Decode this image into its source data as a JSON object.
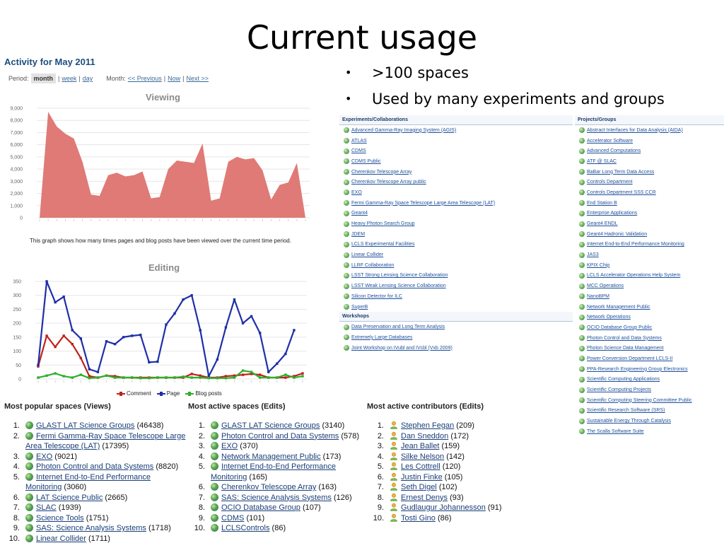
{
  "slide": {
    "title": "Current usage",
    "bullets": [
      ">100 spaces",
      "Used by many experiments and groups"
    ]
  },
  "activity": {
    "title": "Activity for May 2011",
    "period_label": "Period:",
    "period_options": [
      "month",
      "week",
      "day"
    ],
    "period_selected": "month",
    "month_label": "Month:",
    "month_links": [
      "<< Previous",
      "Now",
      "Next >>"
    ],
    "separator": "|"
  },
  "viewing_chart": {
    "title": "Viewing",
    "caption": "This graph shows how many times pages and blog posts have been viewed over the current time period."
  },
  "editing_chart": {
    "title": "Editing",
    "legend": [
      "Comment",
      "Page",
      "Blog posts"
    ]
  },
  "chart_data": [
    {
      "type": "area",
      "title": "Viewing",
      "xlabel": "",
      "ylabel": "",
      "ylim": [
        0,
        9000
      ],
      "yticks": [
        "0",
        "1,000",
        "2,000",
        "3,000",
        "4,000",
        "5,000",
        "6,000",
        "7,000",
        "8,000",
        "9,000"
      ],
      "color": "#e07a76",
      "series": [
        {
          "name": "Views",
          "values": [
            0,
            8700,
            7500,
            6900,
            6500,
            4600,
            1900,
            1800,
            3500,
            3700,
            3400,
            3500,
            3800,
            1600,
            1700,
            4000,
            4700,
            4600,
            4500,
            6100,
            1400,
            1600,
            4600,
            5000,
            4800,
            4900,
            3900,
            1500,
            2700,
            2900,
            4500,
            0
          ]
        }
      ]
    },
    {
      "type": "line",
      "title": "Editing",
      "xlabel": "",
      "ylabel": "",
      "ylim": [
        0,
        350
      ],
      "yticks": [
        "0",
        "50",
        "100",
        "150",
        "200",
        "250",
        "300",
        "350"
      ],
      "series": [
        {
          "name": "Comment",
          "color": "#c0201b",
          "values": [
            45,
            155,
            115,
            155,
            125,
            75,
            10,
            5,
            12,
            10,
            5,
            5,
            5,
            5,
            5,
            5,
            5,
            5,
            18,
            12,
            5,
            5,
            10,
            12,
            15,
            18,
            15,
            5,
            5,
            5,
            10,
            20
          ]
        },
        {
          "name": "Page",
          "color": "#1f2fa8",
          "values": [
            50,
            350,
            275,
            295,
            175,
            145,
            35,
            25,
            135,
            125,
            150,
            155,
            158,
            60,
            62,
            195,
            235,
            285,
            300,
            175,
            10,
            70,
            185,
            285,
            200,
            225,
            165,
            25,
            55,
            90,
            175,
            null
          ]
        },
        {
          "name": "Blog posts",
          "color": "#2fae2b",
          "values": [
            5,
            12,
            20,
            10,
            5,
            15,
            3,
            5,
            12,
            5,
            5,
            5,
            3,
            3,
            5,
            5,
            5,
            8,
            5,
            5,
            3,
            3,
            3,
            5,
            30,
            25,
            5,
            5,
            5,
            15,
            5,
            10
          ]
        }
      ]
    }
  ],
  "popular_views": {
    "heading": "Most popular spaces (Views)",
    "items": [
      {
        "n": "1.",
        "link": "GLAST LAT Science Groups",
        "count": "(46438)"
      },
      {
        "n": "2.",
        "link": "Fermi Gamma-Ray Space Telescope Large Area Telescope (LAT)",
        "count": "(17395)"
      },
      {
        "n": "3.",
        "link": "EXO",
        "count": "(9021)"
      },
      {
        "n": "4.",
        "link": "Photon Control and Data Systems",
        "count": "(8820)"
      },
      {
        "n": "5.",
        "link": "Internet End-to-End Performance Monitoring",
        "count": "(3060)"
      },
      {
        "n": "6.",
        "link": "LAT Science Public",
        "count": "(2665)"
      },
      {
        "n": "7.",
        "link": "SLAC",
        "count": "(1939)"
      },
      {
        "n": "8.",
        "link": "Science Tools",
        "count": "(1751)"
      },
      {
        "n": "9.",
        "link": "SAS: Science Analysis Systems",
        "count": "(1718)"
      },
      {
        "n": "10.",
        "link": "Linear Collider",
        "count": "(1711)"
      }
    ]
  },
  "active_edits": {
    "heading": "Most active spaces (Edits)",
    "items": [
      {
        "n": "1.",
        "link": "GLAST LAT Science Groups",
        "count": "(3140)"
      },
      {
        "n": "2.",
        "link": "Photon Control and Data Systems",
        "count": "(578)"
      },
      {
        "n": "3.",
        "link": "EXO",
        "count": "(370)"
      },
      {
        "n": "4.",
        "link": "Network Management Public",
        "count": "(173)"
      },
      {
        "n": "5.",
        "link": "Internet End-to-End Performance Monitoring",
        "count": "(165)"
      },
      {
        "n": "6.",
        "link": "Cherenkov Telescope Array",
        "count": "(163)"
      },
      {
        "n": "7.",
        "link": "SAS: Science Analysis Systems",
        "count": "(126)"
      },
      {
        "n": "8.",
        "link": "OCIO Database Group",
        "count": "(107)"
      },
      {
        "n": "9.",
        "link": "CDMS",
        "count": "(101)"
      },
      {
        "n": "10.",
        "link": "LCLSControls",
        "count": "(86)"
      }
    ]
  },
  "contributors": {
    "heading": "Most active contributors (Edits)",
    "items": [
      {
        "n": "1.",
        "link": "Stephen Fegan",
        "count": "(209)"
      },
      {
        "n": "2.",
        "link": "Dan Sneddon",
        "count": "(172)"
      },
      {
        "n": "3.",
        "link": "Jean Ballet",
        "count": "(159)"
      },
      {
        "n": "4.",
        "link": "Silke Nelson",
        "count": "(142)"
      },
      {
        "n": "5.",
        "link": "Les Cottrell",
        "count": "(120)"
      },
      {
        "n": "6.",
        "link": "Justin Finke",
        "count": "(105)"
      },
      {
        "n": "7.",
        "link": "Seth Digel",
        "count": "(102)"
      },
      {
        "n": "8.",
        "link": "Ernest Denys",
        "count": "(93)"
      },
      {
        "n": "9.",
        "link": "Gudlaugur Johannesson",
        "count": "(91)"
      },
      {
        "n": "10.",
        "link": "Tosti Gino",
        "count": "(86)"
      }
    ]
  },
  "experiments": {
    "heading": "Experiments/Collaborations",
    "items": [
      "Advanced Gamma-Ray Imaging System (AGIS)",
      "ATLAS",
      "CDMS",
      "CDMS Public",
      "Cherenkov Telescope Array",
      "Cherenkov Telescope Array public",
      "EXO",
      "Fermi Gamma-Ray Space Telescope Large Area Telescope (LAT)",
      "Geant4",
      "Heavy Photon Search Group",
      "JDEM",
      "LCLS Experimental Facilities",
      "Linear Collider",
      "LLRF Collaboration",
      "LSST Strong Lensing Science Collaboration",
      "LSST Weak Lensing Science Collaboration",
      "Silicon Detector for ILC",
      "SuperB"
    ]
  },
  "workshops": {
    "heading": "Workshops",
    "items": [
      "Data Preservation and Long Term Analysis",
      "Extremely Large Databases",
      "Joint Workshop on IVubl and IVcbl (Vxb 2009)"
    ]
  },
  "projects": {
    "heading": "Projects/Groups",
    "items": [
      "Abstract Interfaces for Data Analysis (AIDA)",
      "Accelerator Software",
      "Advanced Computations",
      "ATF @ SLAC",
      "BaBar Long Term Data Access",
      "Controls Department",
      "Controls Department SSS CCR",
      "End Station B",
      "Enterprise Applications",
      "Geant4 ENDL",
      "Geant4 Hadronic Validation",
      "Internet End-to-End Performance Monitoring",
      "JAS3",
      "KPIX Chip",
      "LCLS Accelerator Operations Help System",
      "MCC Operations",
      "NanoBPM",
      "Network Management Public",
      "Network Operations",
      "OCIO Database Group Public",
      "Photon Control and Data Systems",
      "Photon Science Data Management",
      "Power Conversion Department LCLS-II",
      "PPA-Research Engineering Group Electronics",
      "Scientific Computing Applications",
      "Scientific Computing Projects",
      "Scientific Computing Steering Committee Public",
      "Scientific Research Software (SRS)",
      "Sustainable Energy Through Catalysis",
      "The Scalla Software Suite"
    ]
  }
}
